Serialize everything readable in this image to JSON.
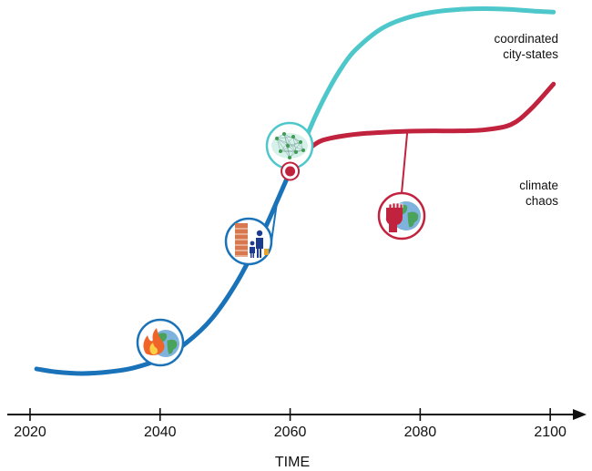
{
  "chart_data": {
    "type": "line",
    "title": "",
    "xlabel": "TIME",
    "ylabel": "",
    "xlim": [
      2016.5,
      2102.5
    ],
    "ylim": [
      0,
      100
    ],
    "x_ticks": [
      "2020",
      "2040",
      "2060",
      "2080",
      "2100"
    ],
    "grid": false,
    "legend": "none",
    "series": [
      {
        "key": "base",
        "color": "#1a73b9",
        "x": [
          2021,
          2024,
          2028,
          2032,
          2036,
          2040,
          2044,
          2048,
          2052,
          2056,
          2058,
          2060
        ],
        "y": [
          6,
          5.2,
          4.8,
          5.2,
          6.3,
          8.6,
          12.8,
          19.3,
          29.3,
          42.5,
          50.1,
          57.9
        ]
      },
      {
        "key": "cities",
        "name": [
          "coordinated",
          "city-states"
        ],
        "color": "#4ec7cb",
        "x": [
          2060,
          2062,
          2064,
          2066,
          2068,
          2070,
          2074,
          2078,
          2082,
          2086,
          2090,
          2094,
          2098,
          2100.5
        ],
        "y": [
          57.9,
          65,
          72.8,
          79.6,
          85.3,
          89.7,
          95.3,
          98.2,
          99.7,
          100.4,
          100.6,
          100.4,
          99.9,
          99.7
        ]
      },
      {
        "key": "chaos",
        "name": [
          "climate",
          "chaos"
        ],
        "color": "#c1223e",
        "x": [
          2060,
          2062,
          2064,
          2066,
          2070,
          2074,
          2078,
          2082,
          2086,
          2090,
          2094,
          2097,
          2100.5
        ],
        "y": [
          57.9,
          62.2,
          65.2,
          66.5,
          67.6,
          68.1,
          68.4,
          68.5,
          68.5,
          68.8,
          70.2,
          74.2,
          80.8
        ]
      }
    ],
    "annotations": [
      {
        "key": "wildfire",
        "icon": "burning-globe-icon",
        "x": 2040,
        "y": 8.6,
        "color": "#1a73b9"
      },
      {
        "key": "migration",
        "icon": "wall-and-migrants-icon",
        "x": 2058,
        "y": 50.1,
        "color": "#1a73b9"
      },
      {
        "key": "network",
        "icon": "connected-cities-map-icon",
        "x": 2062,
        "y": 65,
        "color": "#4ec7cb"
      },
      {
        "key": "protest",
        "icon": "raised-fist-globe-icon",
        "x": 2078,
        "y": 68.4,
        "color": "#c1223e"
      }
    ],
    "branch_point": {
      "x": 2060,
      "y": 57.9,
      "color": "#c1223e"
    }
  }
}
